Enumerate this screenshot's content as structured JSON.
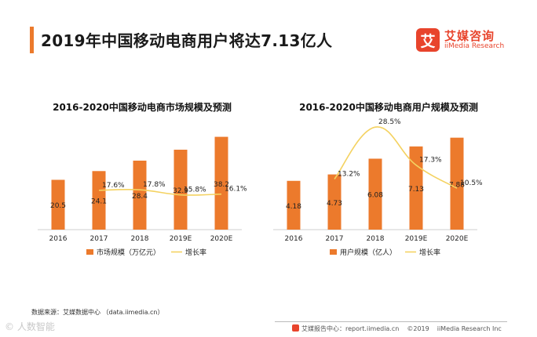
{
  "header": {
    "title": "2019年中国移动电商用户将达7.13亿人"
  },
  "logo": {
    "mark": "艾",
    "name_cn": "艾媒咨询",
    "name_en": "iiMedia Research"
  },
  "chart_data": [
    {
      "type": "bar",
      "title": "2016-2020中国移动电商市场规模及预测",
      "categories": [
        "2016",
        "2017",
        "2018",
        "2019E",
        "2020E"
      ],
      "series": [
        {
          "name": "市场规模（万亿元）",
          "kind": "bar",
          "values": [
            20.5,
            24.1,
            28.4,
            32.9,
            38.2
          ],
          "labels": [
            "20.5",
            "24.1",
            "28.4",
            "32.9",
            "38.2"
          ]
        },
        {
          "name": "增长率",
          "kind": "line",
          "values": [
            null,
            17.6,
            17.8,
            15.8,
            16.1
          ],
          "labels": [
            "",
            "17.6%",
            "17.8%",
            "15.8%",
            "16.1%"
          ]
        }
      ],
      "ylim": [
        0,
        40
      ],
      "line_ylim": [
        0,
        40
      ],
      "colors": {
        "bar": "#ec7a2c",
        "line": "#f4d261"
      },
      "legend_position": "bottom"
    },
    {
      "type": "bar",
      "title": "2016-2020中国移动电商用户规模及预测",
      "categories": [
        "2016",
        "2017",
        "2018",
        "2019E",
        "2020E"
      ],
      "series": [
        {
          "name": "用户规模（亿人）",
          "kind": "bar",
          "values": [
            4.18,
            4.73,
            6.08,
            7.13,
            7.88
          ],
          "labels": [
            "4.18",
            "4.73",
            "6.08",
            "7.13",
            "7.88"
          ]
        },
        {
          "name": "增长率",
          "kind": "line",
          "values": [
            null,
            13.2,
            28.5,
            17.3,
            10.5
          ],
          "labels": [
            "",
            "13.2%",
            "28.5%",
            "17.3%",
            "10.5%"
          ]
        }
      ],
      "ylim": [
        0,
        9
      ],
      "line_ylim": [
        5,
        29
      ],
      "colors": {
        "bar": "#ec7a2c",
        "line": "#f4d261"
      },
      "legend_position": "bottom"
    }
  ],
  "source": "数据来源：艾媒数据中心 （data.iimedia.cn）",
  "watermark": "© 人数智能",
  "footer": {
    "center": "艾媒报告中心：report.iimedia.cn",
    "copyright": "©2019",
    "company": "iiMedia Research Inc"
  }
}
